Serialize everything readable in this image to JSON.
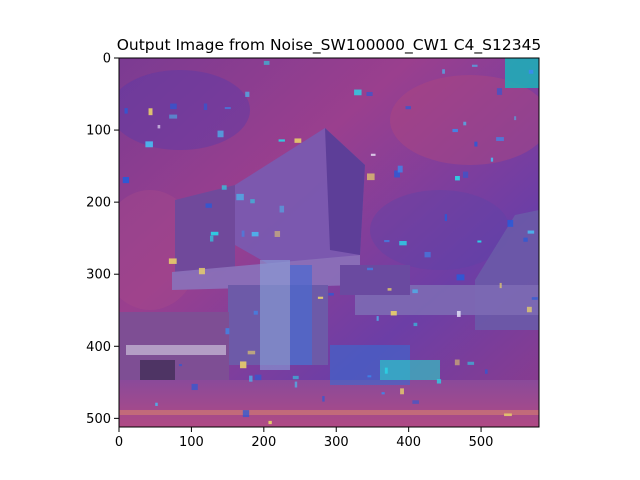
{
  "chart_data": {
    "type": "image",
    "title": "Output Image from Noise_SW100000_CW1 C4_S12345",
    "xlabel": "",
    "ylabel": "",
    "xlim": [
      0,
      580
    ],
    "ylim": [
      512,
      0
    ],
    "xticks": [
      0,
      100,
      200,
      300,
      400,
      500
    ],
    "yticks": [
      0,
      100,
      200,
      300,
      400,
      500
    ],
    "grid": false,
    "image_description_colors": {
      "sky": "#8a3a8e",
      "sky_alt": "#6a3fa0",
      "building": "#7a5aa8",
      "accent_cyan": "#2ad6e8",
      "accent_blue": "#2a5ad8",
      "ground": "#a04a8a"
    }
  }
}
